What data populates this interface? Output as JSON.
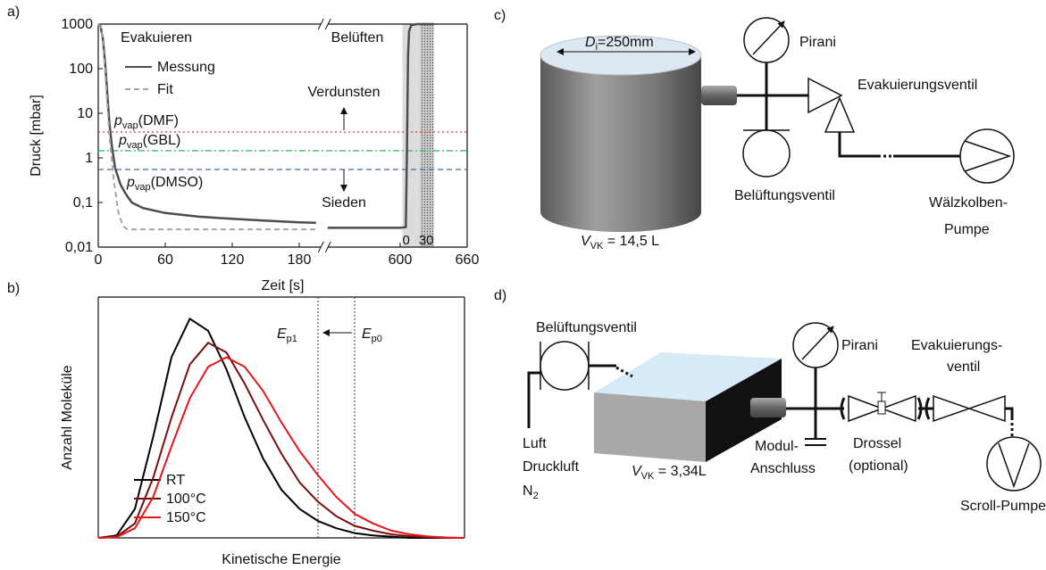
{
  "chart_data": [
    {
      "panel": "a)",
      "type": "line",
      "x_label": "Zeit [s]",
      "y_label": "Druck [mbar]",
      "log_y": true,
      "x_break": true,
      "xlim": [
        0,
        660
      ],
      "ylim": [
        0.01,
        1000
      ],
      "xticks": [
        0,
        60,
        120,
        180,
        600,
        660
      ],
      "yticks": [
        {
          "value": 0.01,
          "label": "0,01"
        },
        {
          "value": 0.1,
          "label": "0,1"
        },
        1,
        10,
        100,
        1000
      ],
      "annotations": [
        "Evakuieren",
        "Belüften",
        "Verdunsten",
        "Sieden"
      ],
      "series": [
        {
          "name": "Messung",
          "color": "#4d4d4d",
          "dash": "solid",
          "x": [
            0,
            2,
            4,
            6,
            8,
            10,
            12,
            15,
            20,
            25,
            30,
            40,
            60,
            90,
            120,
            150,
            180,
            195,
            null,
            535,
            600,
            605,
            606,
            607,
            608,
            610,
            615,
            630
          ],
          "values": [
            1000,
            900,
            500,
            150,
            30,
            6,
            2,
            0.6,
            0.25,
            0.15,
            0.1,
            0.075,
            0.058,
            0.048,
            0.043,
            0.039,
            0.036,
            0.035,
            null,
            0.027,
            0.027,
            0.028,
            1,
            200,
            700,
            950,
            1000,
            1000
          ]
        },
        {
          "name": "Fit",
          "color": "#a6a6a6",
          "dash": "dashed",
          "x": [
            0,
            3,
            6,
            10,
            14,
            18,
            22,
            26,
            195
          ],
          "values": [
            1000,
            800,
            100,
            3,
            0.3,
            0.06,
            0.03,
            0.025,
            0.025
          ]
        }
      ],
      "hlines": [
        {
          "symbol": "p",
          "sub": "vap",
          "name": "(DMF)",
          "value": 3.8,
          "color": "#e8343a",
          "dash": "dotted"
        },
        {
          "symbol": "p",
          "sub": "vap",
          "name": "(GBL)",
          "value": 1.45,
          "color": "#3cb878",
          "dash": "dashdot"
        },
        {
          "symbol": "p",
          "sub": "vap",
          "name": "(DMSO)",
          "value": 0.55,
          "color": "#3b6fb0",
          "dash": "dashed"
        }
      ],
      "shaded_span": [
        602,
        630
      ],
      "dotted_span": [
        618,
        630
      ],
      "vent_ticks": [
        0,
        30
      ]
    },
    {
      "panel": "b)",
      "type": "line",
      "x_label": "Kinetische Energie",
      "y_label": "Anzahl Moleküle",
      "xlim": [
        0,
        10
      ],
      "ylim": [
        0,
        1
      ],
      "x": [
        0,
        0.5,
        1,
        1.5,
        2,
        2.5,
        3,
        3.5,
        4,
        4.5,
        5,
        5.5,
        6,
        6.5,
        7,
        7.5,
        8,
        8.5,
        9,
        9.5,
        10
      ],
      "series": [
        {
          "name": "RT",
          "color": "#000000",
          "dash": "solid",
          "values": [
            0,
            0.01,
            0.12,
            0.42,
            0.75,
            0.91,
            0.86,
            0.7,
            0.5,
            0.33,
            0.2,
            0.12,
            0.07,
            0.04,
            0.02,
            0.01,
            0.005,
            0,
            0,
            0,
            0
          ]
        },
        {
          "name": "100°C",
          "color": "#7b0c0c",
          "dash": "solid",
          "values": [
            0,
            0.005,
            0.06,
            0.25,
            0.5,
            0.72,
            0.81,
            0.77,
            0.64,
            0.49,
            0.35,
            0.23,
            0.15,
            0.09,
            0.05,
            0.03,
            0.015,
            0.007,
            0.003,
            0,
            0
          ]
        },
        {
          "name": "150°C",
          "color": "#e8141a",
          "dash": "solid",
          "values": [
            0,
            0.003,
            0.04,
            0.17,
            0.38,
            0.58,
            0.71,
            0.75,
            0.71,
            0.61,
            0.48,
            0.36,
            0.26,
            0.17,
            0.1,
            0.06,
            0.03,
            0.015,
            0.006,
            0.002,
            0
          ]
        }
      ],
      "vlines": [
        {
          "symbol": "E",
          "sub": "p1",
          "value": 6
        },
        {
          "symbol": "E",
          "sub": "p0",
          "value": 7
        }
      ]
    }
  ],
  "diagrams": [
    {
      "panel": "c)",
      "diameter": {
        "symbol": "D",
        "sub": "i",
        "text": "=250mm"
      },
      "volume": {
        "symbol": "V",
        "sub": "VK",
        "text": " = 14,5 L"
      },
      "labels": [
        "Pirani",
        "Evakuierungsventil",
        "Belüftungsventil",
        "Wälzkolben-",
        "Pumpe"
      ]
    },
    {
      "panel": "d)",
      "volume": {
        "symbol": "V",
        "sub": "VK",
        "text": " = 3,34L"
      },
      "gas": {
        "symbol": "N",
        "sub": "2"
      },
      "labels": [
        "Belüftungsventil",
        "Pirani",
        "Evakuierungs-",
        "ventil",
        "Luft",
        "Druckluft",
        "Modul-",
        "Anschluss",
        "Drossel",
        "(optional)",
        "Scroll-Pumpe"
      ]
    }
  ]
}
